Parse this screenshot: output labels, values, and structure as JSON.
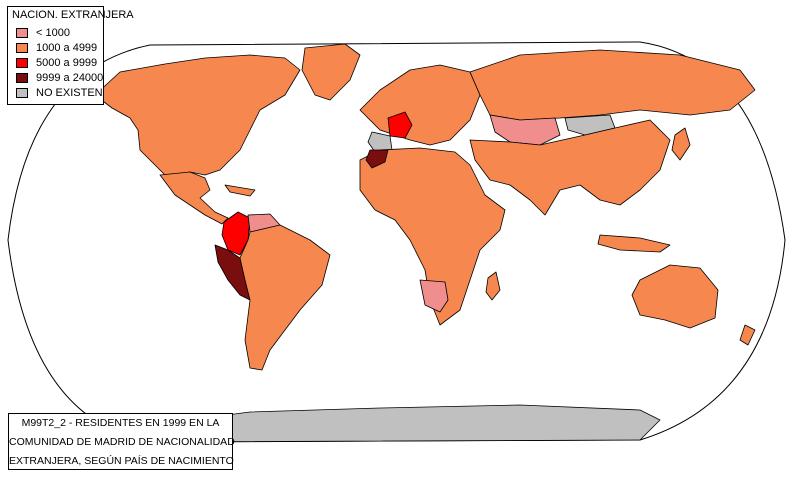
{
  "legend": {
    "title": "NACION. EXTRANJERA",
    "items": [
      {
        "label": "< 1000",
        "color": "#f08d8d"
      },
      {
        "label": "1000 a 4999",
        "color": "#f5874f"
      },
      {
        "label": "5000 a 9999",
        "color": "#ff0000"
      },
      {
        "label": "9999 a 24000",
        "color": "#7a0d0d"
      },
      {
        "label": "NO EXISTEN",
        "color": "#c0c0c0"
      }
    ]
  },
  "caption": {
    "line1": "M99T2_2 - RESIDENTES EN 1999 EN LA",
    "line2": "COMUNIDAD DE MADRID DE NACIONALIDAD",
    "line3": "EXTRANJERA, SEGÚN PAÍS DE NACIMIENTO"
  },
  "map_colors": {
    "water": "#ffffff",
    "border": "#000000"
  }
}
